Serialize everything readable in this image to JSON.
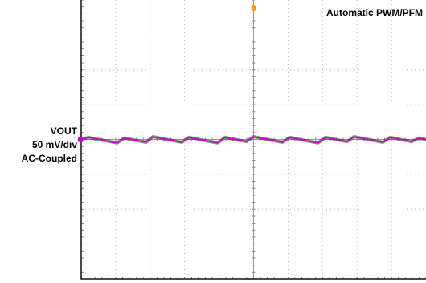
{
  "chart_data": {
    "type": "line",
    "title": "",
    "mode_label": "Automatic PWM/PFM",
    "channel": {
      "name": "VOUT",
      "scale": "50 mV/div",
      "coupling": "AC-Coupled",
      "color": "#cc00cc"
    },
    "trigger_marker_color": "#ff9900",
    "grid": true,
    "divisions": {
      "x": 10,
      "y": 8
    },
    "ylim": [
      -200,
      200
    ],
    "y_unit": "mV",
    "series": [
      {
        "values": [
          0,
          3,
          1,
          -1,
          -3,
          -5,
          2,
          0,
          -2,
          -4,
          4,
          2,
          0,
          -2,
          -4,
          3,
          1,
          -1,
          -3,
          -5,
          3,
          1,
          -1,
          -3,
          4,
          2,
          0,
          -2,
          -4,
          3,
          1,
          -1,
          -3,
          -5,
          3,
          1,
          -1,
          -3,
          4,
          2,
          0,
          -2,
          -4,
          3,
          1,
          -1,
          -3,
          2,
          0
        ]
      }
    ]
  }
}
